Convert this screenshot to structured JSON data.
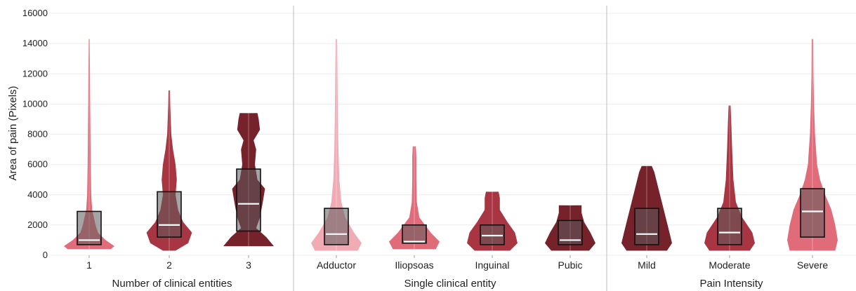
{
  "chart_data": {
    "type": "violin",
    "ylabel": "Area of pain (Pixels)",
    "ylim": [
      0,
      16000
    ],
    "yticks": [
      "0",
      "2000",
      "4000",
      "6000",
      "8000",
      "10000",
      "12000",
      "14000",
      "16000"
    ],
    "grid": true,
    "panels": [
      {
        "xlabel": "Number of clinical entities",
        "groups": [
          {
            "category": "1",
            "color": "#df6472",
            "min": 400,
            "max": 14300,
            "q1": 700,
            "median": 1000,
            "q3": 2900,
            "profile": [
              [
                400,
                0.85
              ],
              [
                600,
                1.0
              ],
              [
                1000,
                0.65
              ],
              [
                1500,
                0.35
              ],
              [
                2000,
                0.25
              ],
              [
                3000,
                0.12
              ],
              [
                4000,
                0.08
              ],
              [
                6000,
                0.06
              ],
              [
                8000,
                0.05
              ],
              [
                10000,
                0.04
              ],
              [
                12000,
                0.03
              ],
              [
                14300,
                0.02
              ]
            ]
          },
          {
            "category": "2",
            "color": "#a32a38",
            "min": 300,
            "max": 10900,
            "q1": 1200,
            "median": 2000,
            "q3": 4200,
            "profile": [
              [
                300,
                0.25
              ],
              [
                800,
                0.75
              ],
              [
                1500,
                0.9
              ],
              [
                2200,
                0.55
              ],
              [
                3000,
                0.35
              ],
              [
                4000,
                0.25
              ],
              [
                5000,
                0.3
              ],
              [
                6000,
                0.25
              ],
              [
                7000,
                0.15
              ],
              [
                8000,
                0.08
              ],
              [
                10000,
                0.04
              ],
              [
                10900,
                0.03
              ]
            ]
          },
          {
            "category": "3",
            "color": "#6e1620",
            "min": 600,
            "max": 9400,
            "q1": 1600,
            "median": 3400,
            "q3": 5700,
            "profile": [
              [
                600,
                1.0
              ],
              [
                1200,
                0.7
              ],
              [
                1800,
                0.3
              ],
              [
                2500,
                0.45
              ],
              [
                3400,
                0.55
              ],
              [
                4400,
                0.65
              ],
              [
                5000,
                0.35
              ],
              [
                6000,
                0.25
              ],
              [
                7000,
                0.3
              ],
              [
                7600,
                0.2
              ],
              [
                8300,
                0.45
              ],
              [
                9000,
                0.4
              ],
              [
                9400,
                0.35
              ]
            ]
          }
        ]
      },
      {
        "xlabel": "Single clinical entity",
        "groups": [
          {
            "category": "Adductor",
            "color": "#f0a7b1",
            "min": 300,
            "max": 14300,
            "q1": 700,
            "median": 1400,
            "q3": 3100,
            "profile": [
              [
                300,
                0.85
              ],
              [
                800,
                1.0
              ],
              [
                1500,
                0.7
              ],
              [
                2500,
                0.35
              ],
              [
                3500,
                0.2
              ],
              [
                5000,
                0.12
              ],
              [
                7000,
                0.08
              ],
              [
                9000,
                0.06
              ],
              [
                11000,
                0.05
              ],
              [
                13000,
                0.04
              ],
              [
                14300,
                0.03
              ]
            ]
          },
          {
            "category": "Iliopsoas",
            "color": "#df6472",
            "min": 400,
            "max": 7200,
            "q1": 800,
            "median": 900,
            "q3": 2000,
            "profile": [
              [
                400,
                0.85
              ],
              [
                900,
                1.0
              ],
              [
                1500,
                0.65
              ],
              [
                2500,
                0.2
              ],
              [
                3500,
                0.1
              ],
              [
                5000,
                0.08
              ],
              [
                6500,
                0.08
              ],
              [
                7200,
                0.06
              ]
            ]
          },
          {
            "category": "Inguinal",
            "color": "#a32a38",
            "min": 300,
            "max": 4200,
            "q1": 700,
            "median": 1300,
            "q3": 2000,
            "profile": [
              [
                300,
                0.7
              ],
              [
                800,
                1.0
              ],
              [
                1500,
                0.9
              ],
              [
                2200,
                0.6
              ],
              [
                3000,
                0.3
              ],
              [
                3800,
                0.3
              ],
              [
                4200,
                0.25
              ]
            ]
          },
          {
            "category": "Pubic",
            "color": "#6e1620",
            "min": 300,
            "max": 3300,
            "q1": 700,
            "median": 1000,
            "q3": 2300,
            "profile": [
              [
                300,
                0.75
              ],
              [
                800,
                1.0
              ],
              [
                1500,
                0.8
              ],
              [
                2200,
                0.55
              ],
              [
                2800,
                0.45
              ],
              [
                3300,
                0.45
              ]
            ]
          }
        ]
      },
      {
        "xlabel": "Pain Intensity",
        "groups": [
          {
            "category": "Mild",
            "color": "#6e1620",
            "min": 300,
            "max": 5900,
            "q1": 700,
            "median": 1400,
            "q3": 3100,
            "profile": [
              [
                300,
                0.8
              ],
              [
                800,
                1.0
              ],
              [
                1500,
                0.9
              ],
              [
                2500,
                0.75
              ],
              [
                3500,
                0.6
              ],
              [
                4500,
                0.45
              ],
              [
                5500,
                0.3
              ],
              [
                5900,
                0.2
              ]
            ]
          },
          {
            "category": "Moderate",
            "color": "#a32a38",
            "min": 300,
            "max": 9900,
            "q1": 700,
            "median": 1500,
            "q3": 3100,
            "profile": [
              [
                300,
                0.8
              ],
              [
                800,
                1.0
              ],
              [
                1500,
                0.9
              ],
              [
                2500,
                0.5
              ],
              [
                3500,
                0.25
              ],
              [
                5000,
                0.15
              ],
              [
                7000,
                0.1
              ],
              [
                9000,
                0.06
              ],
              [
                9900,
                0.04
              ]
            ]
          },
          {
            "category": "Severe",
            "color": "#df6472",
            "min": 300,
            "max": 14300,
            "q1": 1200,
            "median": 2900,
            "q3": 4400,
            "profile": [
              [
                300,
                0.9
              ],
              [
                1000,
                1.0
              ],
              [
                2000,
                0.9
              ],
              [
                3000,
                0.75
              ],
              [
                4000,
                0.5
              ],
              [
                5000,
                0.3
              ],
              [
                6000,
                0.18
              ],
              [
                8000,
                0.1
              ],
              [
                10000,
                0.06
              ],
              [
                12000,
                0.04
              ],
              [
                14300,
                0.03
              ]
            ]
          }
        ]
      }
    ]
  }
}
